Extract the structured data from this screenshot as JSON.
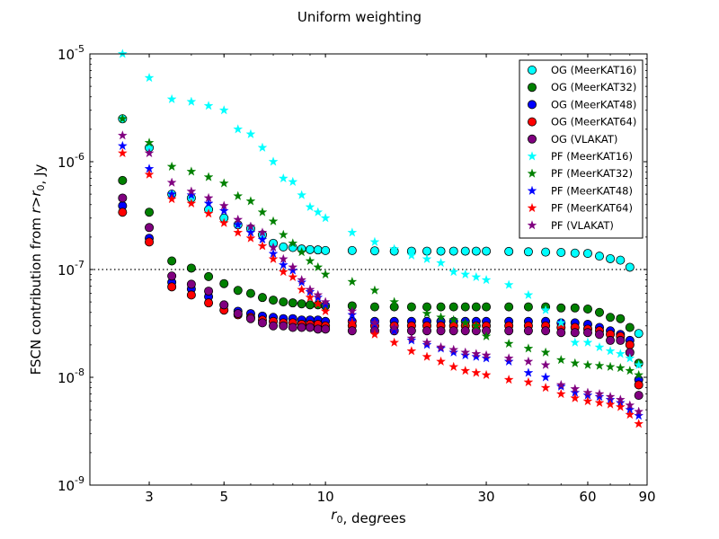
{
  "chart_data": {
    "type": "scatter",
    "title": "Uniform weighting",
    "xlabel": "r₀, degrees",
    "ylabel": "FSCN contribution from r>r₀, Jy",
    "x_scale": "log",
    "y_scale": "log",
    "xlim": [
      2.0,
      90
    ],
    "ylim": [
      1e-09,
      1e-05
    ],
    "x_ticks": [
      3,
      5,
      10,
      30,
      60,
      90
    ],
    "y_ticks": [
      1e-09,
      1e-08,
      1e-07,
      1e-06,
      1e-05
    ],
    "x_tick_labels": [
      "3",
      "5",
      "10",
      "30",
      "60",
      "90"
    ],
    "y_tick_labels": [
      {
        "base": "10",
        "exp": "-9"
      },
      {
        "base": "10",
        "exp": "-8"
      },
      {
        "base": "10",
        "exp": "-7"
      },
      {
        "base": "10",
        "exp": "-6"
      },
      {
        "base": "10",
        "exp": "-5"
      }
    ],
    "reference_line": {
      "y": 1e-07,
      "style": "dotted"
    },
    "legend_position": "top-right",
    "grid": false,
    "series": [
      {
        "name": "OG (MeerKAT16)",
        "marker": "circle",
        "color": "#00ffff",
        "x": [
          2.5,
          3.0,
          3.5,
          4.0,
          4.5,
          5.0,
          5.5,
          6.0,
          6.5,
          7.0,
          7.5,
          8.0,
          8.5,
          9.0,
          9.5,
          10.0,
          12,
          14,
          16,
          18,
          20,
          22,
          24,
          26,
          28,
          30,
          35,
          40,
          45,
          50,
          55,
          60,
          65,
          70,
          75,
          80,
          85
        ],
        "y": [
          2.5e-06,
          1.35e-06,
          5e-07,
          4.6e-07,
          3.6e-07,
          3e-07,
          2.6e-07,
          2.4e-07,
          2.1e-07,
          1.75e-07,
          1.62e-07,
          1.6e-07,
          1.55e-07,
          1.53e-07,
          1.52e-07,
          1.5e-07,
          1.5e-07,
          1.49e-07,
          1.48e-07,
          1.48e-07,
          1.48e-07,
          1.48e-07,
          1.48e-07,
          1.48e-07,
          1.48e-07,
          1.48e-07,
          1.47e-07,
          1.46e-07,
          1.45e-07,
          1.44e-07,
          1.42e-07,
          1.41e-07,
          1.33e-07,
          1.26e-07,
          1.22e-07,
          1.05e-07,
          2.55e-08
        ]
      },
      {
        "name": "OG (MeerKAT32)",
        "marker": "circle",
        "color": "#008000",
        "x": [
          2.5,
          3.0,
          3.5,
          4.0,
          4.5,
          5.0,
          5.5,
          6.0,
          6.5,
          7.0,
          7.5,
          8.0,
          8.5,
          9.0,
          9.5,
          10.0,
          12,
          14,
          16,
          18,
          20,
          22,
          24,
          26,
          28,
          30,
          35,
          40,
          45,
          50,
          55,
          60,
          65,
          70,
          75,
          80,
          85
        ],
        "y": [
          6.7e-07,
          3.4e-07,
          1.2e-07,
          1.03e-07,
          8.6e-08,
          7.4e-08,
          6.4e-08,
          6e-08,
          5.5e-08,
          5.2e-08,
          5e-08,
          4.9e-08,
          4.8e-08,
          4.7e-08,
          4.7e-08,
          4.6e-08,
          4.6e-08,
          4.5e-08,
          4.5e-08,
          4.5e-08,
          4.5e-08,
          4.5e-08,
          4.5e-08,
          4.5e-08,
          4.5e-08,
          4.5e-08,
          4.5e-08,
          4.5e-08,
          4.5e-08,
          4.4e-08,
          4.4e-08,
          4.3e-08,
          4e-08,
          3.6e-08,
          3.5e-08,
          2.9e-08,
          1.35e-08
        ]
      },
      {
        "name": "OG (MeerKAT48)",
        "marker": "circle",
        "color": "#0000ff",
        "x": [
          2.5,
          3.0,
          3.5,
          4.0,
          4.5,
          5.0,
          5.5,
          6.0,
          6.5,
          7.0,
          7.5,
          8.0,
          8.5,
          9.0,
          9.5,
          10.0,
          12,
          14,
          16,
          18,
          20,
          22,
          24,
          26,
          28,
          30,
          35,
          40,
          45,
          50,
          55,
          60,
          65,
          70,
          75,
          80,
          85
        ],
        "y": [
          3.9e-07,
          1.95e-07,
          7.6e-08,
          6.6e-08,
          5.6e-08,
          4.7e-08,
          4.1e-08,
          3.9e-08,
          3.7e-08,
          3.6e-08,
          3.5e-08,
          3.5e-08,
          3.4e-08,
          3.4e-08,
          3.4e-08,
          3.3e-08,
          3.3e-08,
          3.3e-08,
          3.3e-08,
          3.3e-08,
          3.3e-08,
          3.3e-08,
          3.3e-08,
          3.3e-08,
          3.3e-08,
          3.3e-08,
          3.3e-08,
          3.3e-08,
          3.3e-08,
          3.2e-08,
          3.2e-08,
          3.1e-08,
          2.9e-08,
          2.7e-08,
          2.5e-08,
          2.2e-08,
          9.5e-09
        ]
      },
      {
        "name": "OG (MeerKAT64)",
        "marker": "circle",
        "color": "#ff0000",
        "x": [
          2.5,
          3.0,
          3.5,
          4.0,
          4.5,
          5.0,
          5.5,
          6.0,
          6.5,
          7.0,
          7.5,
          8.0,
          8.5,
          9.0,
          9.5,
          10.0,
          12,
          14,
          16,
          18,
          20,
          22,
          24,
          26,
          28,
          30,
          35,
          40,
          45,
          50,
          55,
          60,
          65,
          70,
          75,
          80,
          85
        ],
        "y": [
          3.4e-07,
          1.8e-07,
          6.9e-08,
          5.8e-08,
          4.9e-08,
          4.2e-08,
          3.8e-08,
          3.6e-08,
          3.4e-08,
          3.3e-08,
          3.2e-08,
          3.2e-08,
          3.1e-08,
          3.1e-08,
          3.1e-08,
          3e-08,
          3e-08,
          3e-08,
          3e-08,
          3e-08,
          3e-08,
          3e-08,
          3e-08,
          3e-08,
          3e-08,
          3e-08,
          3e-08,
          3e-08,
          3e-08,
          2.9e-08,
          2.9e-08,
          2.8e-08,
          2.7e-08,
          2.5e-08,
          2.4e-08,
          2e-08,
          8.5e-09
        ]
      },
      {
        "name": "OG (VLAKAT)",
        "marker": "circle",
        "color": "#800080",
        "x": [
          2.5,
          3.0,
          3.5,
          4.0,
          4.5,
          5.0,
          5.5,
          6.0,
          6.5,
          7.0,
          7.5,
          8.0,
          8.5,
          9.0,
          9.5,
          10.0,
          12,
          14,
          16,
          18,
          20,
          22,
          24,
          26,
          28,
          30,
          35,
          40,
          45,
          50,
          55,
          60,
          65,
          70,
          75,
          80,
          85
        ],
        "y": [
          4.6e-07,
          2.45e-07,
          8.7e-08,
          7.3e-08,
          6.3e-08,
          4.7e-08,
          3.9e-08,
          3.5e-08,
          3.2e-08,
          3e-08,
          3e-08,
          2.9e-08,
          2.9e-08,
          2.9e-08,
          2.8e-08,
          2.8e-08,
          2.7e-08,
          2.7e-08,
          2.7e-08,
          2.7e-08,
          2.7e-08,
          2.7e-08,
          2.7e-08,
          2.7e-08,
          2.7e-08,
          2.7e-08,
          2.7e-08,
          2.7e-08,
          2.7e-08,
          2.6e-08,
          2.6e-08,
          2.6e-08,
          2.5e-08,
          2.2e-08,
          2.2e-08,
          1.7e-08,
          6.8e-09
        ]
      },
      {
        "name": "PF (MeerKAT16)",
        "marker": "star",
        "color": "#00ffff",
        "x": [
          2.5,
          3.0,
          3.5,
          4.0,
          4.5,
          5.0,
          5.5,
          6.0,
          6.5,
          7.0,
          7.5,
          8.0,
          8.5,
          9.0,
          9.5,
          10.0,
          12,
          14,
          16,
          18,
          20,
          22,
          24,
          26,
          28,
          30,
          35,
          40,
          45,
          50,
          55,
          60,
          65,
          70,
          75,
          80,
          85
        ],
        "y": [
          1e-05,
          6e-06,
          3.8e-06,
          3.6e-06,
          3.3e-06,
          3e-06,
          2e-06,
          1.8e-06,
          1.35e-06,
          1e-06,
          7e-07,
          6.5e-07,
          4.9e-07,
          3.8e-07,
          3.4e-07,
          3e-07,
          2.2e-07,
          1.8e-07,
          1.55e-07,
          1.35e-07,
          1.25e-07,
          1.15e-07,
          9.5e-08,
          9e-08,
          8.5e-08,
          8e-08,
          7.2e-08,
          5.8e-08,
          4.2e-08,
          3.2e-08,
          2.1e-08,
          2.1e-08,
          1.9e-08,
          1.75e-08,
          1.65e-08,
          1.5e-08,
          1.3e-08
        ]
      },
      {
        "name": "PF (MeerKAT32)",
        "marker": "star",
        "color": "#008000",
        "x": [
          2.5,
          3.0,
          3.5,
          4.0,
          4.5,
          5.0,
          5.5,
          6.0,
          6.5,
          7.0,
          7.5,
          8.0,
          8.5,
          9.0,
          9.5,
          10.0,
          12,
          14,
          16,
          18,
          20,
          22,
          24,
          26,
          28,
          30,
          35,
          40,
          45,
          50,
          55,
          60,
          65,
          70,
          75,
          80,
          85
        ],
        "y": [
          2.5e-06,
          1.5e-06,
          9e-07,
          8.1e-07,
          7.2e-07,
          6.3e-07,
          4.8e-07,
          4.3e-07,
          3.4e-07,
          2.8e-07,
          2.1e-07,
          1.75e-07,
          1.45e-07,
          1.2e-07,
          1.05e-07,
          9e-08,
          7.7e-08,
          6.4e-08,
          5e-08,
          4.5e-08,
          3.9e-08,
          3.6e-08,
          3.4e-08,
          3.2e-08,
          3e-08,
          2.4e-08,
          2.05e-08,
          1.85e-08,
          1.7e-08,
          1.45e-08,
          1.35e-08,
          1.3e-08,
          1.28e-08,
          1.25e-08,
          1.22e-08,
          1.15e-08,
          1.05e-08
        ]
      },
      {
        "name": "PF (MeerKAT48)",
        "marker": "star",
        "color": "#0000ff",
        "x": [
          2.5,
          3.0,
          3.5,
          4.0,
          4.5,
          5.0,
          5.5,
          6.0,
          6.5,
          7.0,
          7.5,
          8.0,
          8.5,
          9.0,
          9.5,
          10.0,
          12,
          14,
          16,
          18,
          20,
          22,
          24,
          26,
          28,
          30,
          35,
          40,
          45,
          50,
          55,
          60,
          65,
          70,
          75,
          80,
          85
        ],
        "y": [
          1.4e-06,
          8.6e-07,
          5e-07,
          4.9e-07,
          4.1e-07,
          3.5e-07,
          2.6e-07,
          2.2e-07,
          1.9e-07,
          1.4e-07,
          1.1e-07,
          9.8e-08,
          7.6e-08,
          6.2e-08,
          5.5e-08,
          4.7e-08,
          3.8e-08,
          3.1e-08,
          2.7e-08,
          2.2e-08,
          2e-08,
          1.85e-08,
          1.7e-08,
          1.6e-08,
          1.55e-08,
          1.5e-08,
          1.4e-08,
          1.1e-08,
          1e-08,
          8.2e-09,
          7.2e-09,
          6.8e-09,
          6.6e-09,
          6.2e-09,
          5.8e-09,
          5e-09,
          4.4e-09
        ]
      },
      {
        "name": "PF (MeerKAT64)",
        "marker": "star",
        "color": "#ff0000",
        "x": [
          2.5,
          3.0,
          3.5,
          4.0,
          4.5,
          5.0,
          5.5,
          6.0,
          6.5,
          7.0,
          7.5,
          8.0,
          8.5,
          9.0,
          9.5,
          10.0,
          12,
          14,
          16,
          18,
          20,
          22,
          24,
          26,
          28,
          30,
          35,
          40,
          45,
          50,
          55,
          60,
          65,
          70,
          75,
          80,
          85
        ],
        "y": [
          1.2e-06,
          7.6e-07,
          4.5e-07,
          4.1e-07,
          3.3e-07,
          2.7e-07,
          2.2e-07,
          1.95e-07,
          1.65e-07,
          1.25e-07,
          9.5e-08,
          8.5e-08,
          6.5e-08,
          5.5e-08,
          4.8e-08,
          4.1e-08,
          3.2e-08,
          2.5e-08,
          2.1e-08,
          1.75e-08,
          1.55e-08,
          1.4e-08,
          1.25e-08,
          1.15e-08,
          1.1e-08,
          1.05e-08,
          9.5e-09,
          9e-09,
          8e-09,
          7e-09,
          6.4e-09,
          6e-09,
          5.8e-09,
          5.6e-09,
          5.3e-09,
          4.5e-09,
          3.7e-09
        ]
      },
      {
        "name": "PF (VLAKAT)",
        "marker": "star",
        "color": "#800080",
        "x": [
          2.5,
          3.0,
          3.5,
          4.0,
          4.5,
          5.0,
          5.5,
          6.0,
          6.5,
          7.0,
          7.5,
          8.0,
          8.5,
          9.0,
          9.5,
          10.0,
          12,
          14,
          16,
          18,
          20,
          22,
          24,
          26,
          28,
          30,
          35,
          40,
          45,
          50,
          55,
          60,
          65,
          70,
          75,
          80,
          85
        ],
        "y": [
          1.75e-06,
          1.2e-06,
          6.4e-07,
          5.3e-07,
          4.6e-07,
          3.9e-07,
          2.9e-07,
          2.5e-07,
          2.2e-07,
          1.6e-07,
          1.25e-07,
          1.05e-07,
          8e-08,
          6.5e-08,
          5.8e-08,
          5e-08,
          4.1e-08,
          3.2e-08,
          2.9e-08,
          2.3e-08,
          2.1e-08,
          1.9e-08,
          1.8e-08,
          1.7e-08,
          1.65e-08,
          1.6e-08,
          1.5e-08,
          1.4e-08,
          1.3e-08,
          8.5e-09,
          7.8e-09,
          7.2e-09,
          7e-09,
          6.6e-09,
          6.2e-09,
          5.5e-09,
          4.8e-09
        ]
      }
    ]
  }
}
